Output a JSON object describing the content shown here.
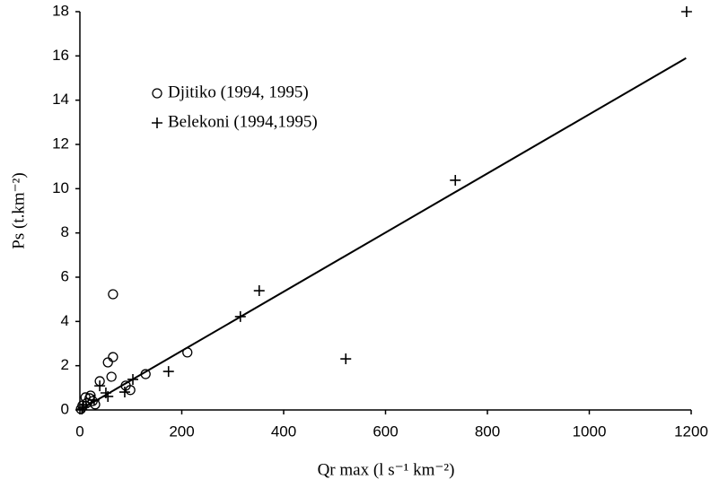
{
  "chart_data": {
    "type": "scatter",
    "x_label": "Qr max (l s⁻¹ km⁻²)",
    "y_label": "Ps (t.km⁻²)",
    "xlim": [
      0,
      1200
    ],
    "xticks": [
      0,
      200,
      400,
      600,
      800,
      1000,
      1200
    ],
    "ylim": [
      0,
      18
    ],
    "yticks": [
      0,
      2,
      4,
      6,
      8,
      10,
      12,
      14,
      16,
      18
    ],
    "grid": false,
    "color": "#000000",
    "series": [
      {
        "name": "Djitiko (1994, 1995)",
        "marker": "circle",
        "x": [
          65,
          65,
          55,
          62,
          39,
          211,
          129,
          90,
          99,
          11,
          21,
          25,
          30,
          5,
          14,
          2,
          19
        ],
        "values": [
          5.23,
          2.39,
          2.15,
          1.5,
          1.3,
          2.6,
          1.62,
          1.1,
          0.9,
          0.57,
          0.65,
          0.4,
          0.25,
          0.2,
          0.32,
          0.04,
          0.53
        ]
      },
      {
        "name": "Belekoni (1994,1995)",
        "marker": "plus",
        "x": [
          1191,
          737,
          352,
          315,
          522,
          174,
          104,
          88,
          51,
          39,
          28,
          12,
          7,
          4,
          55
        ],
        "values": [
          18.0,
          10.38,
          5.39,
          4.22,
          2.31,
          1.74,
          1.38,
          0.81,
          0.77,
          1.09,
          0.45,
          0.24,
          0.12,
          0.04,
          0.61
        ]
      }
    ],
    "fit": {
      "x": [
        0,
        1190
      ],
      "values": [
        0,
        15.9
      ]
    }
  }
}
